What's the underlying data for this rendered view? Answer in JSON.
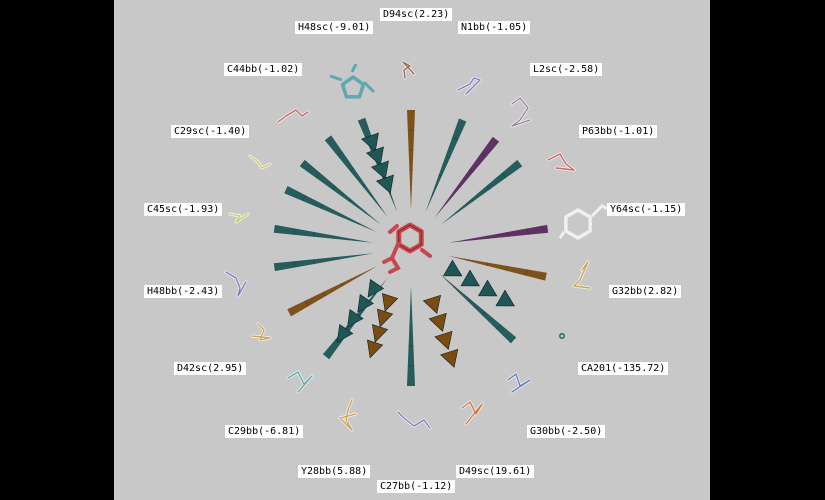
{
  "colors": {
    "background": "#c8c8c8",
    "frame": "#000000",
    "label_bg": "#ffffff",
    "arrow_teal": "#1f5656",
    "arrow_brown": "#7a4c12",
    "arrow_purple": "#5a2a5e",
    "ligand": "#c8484f"
  },
  "labels": [
    "D94sc(2.23)",
    "N1bb(-1.05)",
    "L2sc(-2.58)",
    "P63bb(-1.01)",
    "Y64sc(-1.15)",
    "G32bb(2.82)",
    "CA201(-135.72)",
    "G30bb(-2.50)",
    "D49sc(19.61)",
    "C27bb(-1.12)",
    "Y28bb(5.88)",
    "C29bb(-6.81)",
    "D42sc(2.95)",
    "H48bb(-2.43)",
    "C45sc(-1.93)",
    "C29sc(-1.40)",
    "C44bb(-1.02)",
    "H48sc(-9.01)"
  ],
  "residue_icons": [
    "residue-d94-stick",
    "residue-n1-stick",
    "residue-l2-stick",
    "residue-p63-stick",
    "residue-y64-ring",
    "residue-g32-stick",
    "ion-ca201",
    "residue-g30-stick",
    "residue-d49-stick",
    "residue-c27-stick",
    "residue-y28-stick",
    "residue-c29-stick",
    "residue-d42-stick",
    "residue-h48bb-stick",
    "residue-c45-stick",
    "residue-c29sc-stick",
    "residue-c44-stick",
    "residue-h48sc-ring"
  ],
  "center_icon": "ligand-icon"
}
